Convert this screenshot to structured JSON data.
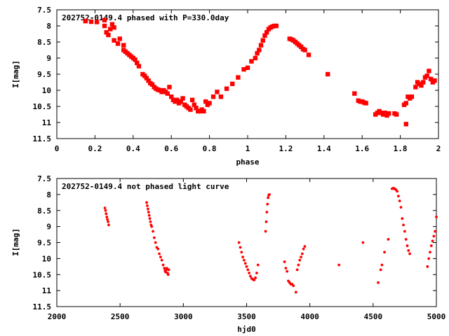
{
  "chart_data": [
    {
      "type": "scatter",
      "title": "202752-0149.4 phased with P=330.0day",
      "xlabel": "phase",
      "ylabel": "I[mag]",
      "xlim": [
        0,
        2
      ],
      "ylim": [
        11.5,
        7.5
      ],
      "y_inverted": true,
      "grid": false,
      "legend": "none",
      "color": "#ff0000",
      "x_ticks": [
        0,
        0.2,
        0.4,
        0.6,
        0.8,
        1,
        1.2,
        1.4,
        1.6,
        1.8,
        2
      ],
      "x_tick_labels": [
        "0",
        "0.2",
        "0.4",
        "0.6",
        "0.8",
        "1",
        "1.2",
        "1.4",
        "1.6",
        "1.8",
        "2"
      ],
      "y_ticks": [
        7.5,
        8,
        8.5,
        9,
        9.5,
        10,
        10.5,
        11,
        11.5
      ],
      "y_tick_labels": [
        "7.5",
        "8",
        "8.5",
        "9",
        "9.5",
        "10",
        "10.5",
        "11",
        "11.5"
      ],
      "points": [
        [
          0.15,
          7.85
        ],
        [
          0.18,
          7.87
        ],
        [
          0.21,
          7.88
        ],
        [
          0.25,
          7.82
        ],
        [
          0.25,
          8.0
        ],
        [
          0.26,
          8.2
        ],
        [
          0.27,
          8.28
        ],
        [
          0.28,
          8.1
        ],
        [
          0.29,
          7.95
        ],
        [
          0.3,
          8.05
        ],
        [
          0.3,
          8.45
        ],
        [
          0.32,
          8.55
        ],
        [
          0.33,
          8.4
        ],
        [
          0.35,
          8.6
        ],
        [
          0.35,
          8.75
        ],
        [
          0.36,
          8.8
        ],
        [
          0.37,
          8.85
        ],
        [
          0.38,
          8.9
        ],
        [
          0.39,
          8.95
        ],
        [
          0.4,
          9.0
        ],
        [
          0.41,
          9.05
        ],
        [
          0.42,
          9.15
        ],
        [
          0.43,
          9.25
        ],
        [
          0.45,
          9.5
        ],
        [
          0.46,
          9.55
        ],
        [
          0.47,
          9.62
        ],
        [
          0.48,
          9.7
        ],
        [
          0.49,
          9.78
        ],
        [
          0.5,
          9.82
        ],
        [
          0.51,
          9.9
        ],
        [
          0.52,
          9.95
        ],
        [
          0.53,
          9.98
        ],
        [
          0.54,
          10.0
        ],
        [
          0.55,
          10.05
        ],
        [
          0.56,
          10.0
        ],
        [
          0.57,
          10.05
        ],
        [
          0.58,
          10.1
        ],
        [
          0.59,
          9.9
        ],
        [
          0.6,
          10.2
        ],
        [
          0.61,
          10.3
        ],
        [
          0.62,
          10.35
        ],
        [
          0.63,
          10.3
        ],
        [
          0.64,
          10.4
        ],
        [
          0.65,
          10.35
        ],
        [
          0.66,
          10.25
        ],
        [
          0.67,
          10.45
        ],
        [
          0.68,
          10.5
        ],
        [
          0.69,
          10.55
        ],
        [
          0.7,
          10.6
        ],
        [
          0.71,
          10.3
        ],
        [
          0.72,
          10.45
        ],
        [
          0.73,
          10.55
        ],
        [
          0.74,
          10.65
        ],
        [
          0.75,
          10.65
        ],
        [
          0.76,
          10.6
        ],
        [
          0.77,
          10.65
        ],
        [
          0.78,
          10.35
        ],
        [
          0.79,
          10.45
        ],
        [
          0.8,
          10.4
        ],
        [
          0.82,
          10.2
        ],
        [
          0.84,
          10.05
        ],
        [
          0.86,
          10.2
        ],
        [
          0.89,
          9.95
        ],
        [
          0.92,
          9.8
        ],
        [
          0.95,
          9.6
        ],
        [
          0.98,
          9.35
        ],
        [
          1.0,
          9.3
        ],
        [
          1.02,
          9.1
        ],
        [
          1.04,
          9.0
        ],
        [
          1.05,
          8.85
        ],
        [
          1.06,
          8.75
        ],
        [
          1.07,
          8.6
        ],
        [
          1.08,
          8.45
        ],
        [
          1.09,
          8.3
        ],
        [
          1.1,
          8.2
        ],
        [
          1.11,
          8.1
        ],
        [
          1.12,
          8.05
        ],
        [
          1.13,
          8.02
        ],
        [
          1.14,
          8.0
        ],
        [
          1.15,
          8.0
        ],
        [
          1.22,
          8.4
        ],
        [
          1.23,
          8.42
        ],
        [
          1.24,
          8.45
        ],
        [
          1.25,
          8.5
        ],
        [
          1.26,
          8.55
        ],
        [
          1.27,
          8.6
        ],
        [
          1.28,
          8.65
        ],
        [
          1.29,
          8.72
        ],
        [
          1.3,
          8.75
        ],
        [
          1.32,
          8.9
        ],
        [
          1.42,
          9.5
        ],
        [
          1.56,
          10.1
        ],
        [
          1.58,
          10.32
        ],
        [
          1.59,
          10.35
        ],
        [
          1.6,
          10.35
        ],
        [
          1.61,
          10.38
        ],
        [
          1.62,
          10.4
        ],
        [
          1.67,
          10.75
        ],
        [
          1.68,
          10.7
        ],
        [
          1.69,
          10.65
        ],
        [
          1.7,
          10.7
        ],
        [
          1.71,
          10.75
        ],
        [
          1.72,
          10.7
        ],
        [
          1.73,
          10.78
        ],
        [
          1.74,
          10.72
        ],
        [
          1.77,
          10.72
        ],
        [
          1.78,
          10.75
        ],
        [
          1.82,
          10.45
        ],
        [
          1.83,
          10.4
        ],
        [
          1.84,
          10.2
        ],
        [
          1.85,
          10.25
        ],
        [
          1.86,
          10.2
        ],
        [
          1.88,
          9.9
        ],
        [
          1.89,
          9.75
        ],
        [
          1.9,
          9.8
        ],
        [
          1.91,
          9.85
        ],
        [
          1.92,
          9.75
        ],
        [
          1.93,
          9.6
        ],
        [
          1.94,
          9.55
        ],
        [
          1.95,
          9.4
        ],
        [
          1.96,
          9.65
        ],
        [
          1.97,
          9.75
        ],
        [
          1.98,
          9.7
        ],
        [
          1.83,
          11.05
        ]
      ]
    },
    {
      "type": "scatter",
      "title": "202752-0149.4 not phased light curve",
      "xlabel": "hjd0",
      "ylabel": "I[mag]",
      "xlim": [
        2000,
        5000
      ],
      "ylim": [
        11.5,
        7.5
      ],
      "y_inverted": true,
      "grid": false,
      "legend": "none",
      "color": "#ff0000",
      "x_ticks": [
        2000,
        2500,
        3000,
        3500,
        4000,
        4500,
        5000
      ],
      "x_tick_labels": [
        "2000",
        "2500",
        "3000",
        "3500",
        "4000",
        "4500",
        "5000"
      ],
      "y_ticks": [
        7.5,
        8,
        8.5,
        9,
        9.5,
        10,
        10.5,
        11,
        11.5
      ],
      "y_tick_labels": [
        "7.5",
        "8",
        "8.5",
        "9",
        "9.5",
        "10",
        "10.5",
        "11",
        "11.5"
      ],
      "points": [
        [
          2380,
          8.42
        ],
        [
          2385,
          8.5
        ],
        [
          2390,
          8.6
        ],
        [
          2395,
          8.7
        ],
        [
          2400,
          8.78
        ],
        [
          2405,
          8.85
        ],
        [
          2410,
          8.95
        ],
        [
          2710,
          8.25
        ],
        [
          2715,
          8.35
        ],
        [
          2720,
          8.45
        ],
        [
          2725,
          8.55
        ],
        [
          2730,
          8.65
        ],
        [
          2735,
          8.75
        ],
        [
          2740,
          8.85
        ],
        [
          2745,
          8.95
        ],
        [
          2750,
          9.0
        ],
        [
          2760,
          9.15
        ],
        [
          2770,
          9.35
        ],
        [
          2780,
          9.5
        ],
        [
          2790,
          9.65
        ],
        [
          2800,
          9.7
        ],
        [
          2810,
          9.85
        ],
        [
          2820,
          9.95
        ],
        [
          2830,
          10.05
        ],
        [
          2840,
          10.2
        ],
        [
          2850,
          10.3
        ],
        [
          2855,
          10.38
        ],
        [
          2860,
          10.42
        ],
        [
          2865,
          10.35
        ],
        [
          2870,
          10.3
        ],
        [
          2875,
          10.45
        ],
        [
          2880,
          10.5
        ],
        [
          2885,
          10.35
        ],
        [
          3440,
          9.5
        ],
        [
          3450,
          9.65
        ],
        [
          3460,
          9.8
        ],
        [
          3470,
          9.95
        ],
        [
          3480,
          10.05
        ],
        [
          3490,
          10.15
        ],
        [
          3500,
          10.25
        ],
        [
          3510,
          10.35
        ],
        [
          3520,
          10.45
        ],
        [
          3530,
          10.55
        ],
        [
          3540,
          10.62
        ],
        [
          3550,
          10.65
        ],
        [
          3560,
          10.67
        ],
        [
          3570,
          10.6
        ],
        [
          3580,
          10.45
        ],
        [
          3590,
          10.2
        ],
        [
          3650,
          9.15
        ],
        [
          3655,
          8.85
        ],
        [
          3660,
          8.55
        ],
        [
          3665,
          8.3
        ],
        [
          3670,
          8.1
        ],
        [
          3675,
          8.02
        ],
        [
          3680,
          8.0
        ],
        [
          3800,
          10.1
        ],
        [
          3810,
          10.3
        ],
        [
          3820,
          10.4
        ],
        [
          3830,
          10.7
        ],
        [
          3840,
          10.75
        ],
        [
          3850,
          10.8
        ],
        [
          3860,
          10.8
        ],
        [
          3870,
          10.85
        ],
        [
          3890,
          11.05
        ],
        [
          3900,
          10.35
        ],
        [
          3910,
          10.2
        ],
        [
          3920,
          10.05
        ],
        [
          3930,
          9.95
        ],
        [
          3940,
          9.85
        ],
        [
          3950,
          9.7
        ],
        [
          3960,
          9.62
        ],
        [
          4230,
          10.2
        ],
        [
          4420,
          9.5
        ],
        [
          4540,
          10.75
        ],
        [
          4560,
          10.35
        ],
        [
          4570,
          10.2
        ],
        [
          4590,
          9.8
        ],
        [
          4620,
          9.4
        ],
        [
          4650,
          7.82
        ],
        [
          4660,
          7.8
        ],
        [
          4670,
          7.82
        ],
        [
          4680,
          7.85
        ],
        [
          4690,
          7.9
        ],
        [
          4700,
          8.05
        ],
        [
          4710,
          8.2
        ],
        [
          4720,
          8.4
        ],
        [
          4730,
          8.75
        ],
        [
          4740,
          8.95
        ],
        [
          4750,
          9.15
        ],
        [
          4760,
          9.4
        ],
        [
          4770,
          9.6
        ],
        [
          4780,
          9.75
        ],
        [
          4790,
          9.85
        ],
        [
          4930,
          10.25
        ],
        [
          4940,
          10.0
        ],
        [
          4950,
          9.8
        ],
        [
          4960,
          9.6
        ],
        [
          4970,
          9.45
        ],
        [
          4980,
          9.3
        ],
        [
          4990,
          9.15
        ],
        [
          5000,
          8.7
        ]
      ]
    }
  ]
}
